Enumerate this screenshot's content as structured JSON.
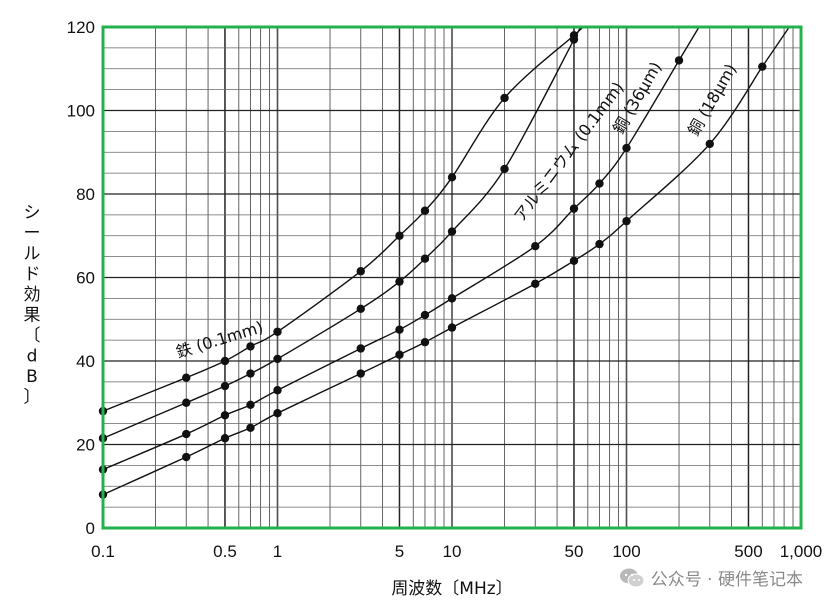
{
  "chart_data": {
    "type": "line",
    "x_scale": "log",
    "xlim": [
      0.1,
      1000
    ],
    "ylim": [
      0,
      120
    ],
    "xlabel": "周波数〔MHz〕",
    "ylabel": "シールド効果〔dB〕",
    "x_ticks": [
      {
        "value": 0.1,
        "label": "0.1"
      },
      {
        "value": 0.5,
        "label": "0.5"
      },
      {
        "value": 1,
        "label": "1"
      },
      {
        "value": 5,
        "label": "5"
      },
      {
        "value": 10,
        "label": "10"
      },
      {
        "value": 50,
        "label": "50"
      },
      {
        "value": 100,
        "label": "100"
      },
      {
        "value": 500,
        "label": "500"
      },
      {
        "value": 1000,
        "label": "1,000"
      }
    ],
    "y_ticks": [
      0,
      20,
      40,
      60,
      80,
      100,
      120
    ],
    "grid": true,
    "frame_color": "#22b14c",
    "series": [
      {
        "name": "鉄 (0.1mm)",
        "points": [
          [
            0.1,
            28
          ],
          [
            0.3,
            36
          ],
          [
            0.5,
            40
          ],
          [
            0.7,
            43.5
          ],
          [
            1,
            47
          ],
          [
            3,
            61.5
          ],
          [
            5,
            70
          ],
          [
            7,
            76
          ],
          [
            10,
            84
          ],
          [
            20,
            103
          ],
          [
            50,
            118
          ]
        ]
      },
      {
        "name": "アルミニウム (0.1mm)",
        "points": [
          [
            0.1,
            21.5
          ],
          [
            0.3,
            30
          ],
          [
            0.5,
            34
          ],
          [
            0.7,
            37
          ],
          [
            1,
            40.5
          ],
          [
            3,
            52.5
          ],
          [
            5,
            59
          ],
          [
            7,
            64.5
          ],
          [
            10,
            71
          ],
          [
            20,
            86
          ],
          [
            50,
            117
          ]
        ]
      },
      {
        "name": "銅 (36μm)",
        "points": [
          [
            0.1,
            14
          ],
          [
            0.3,
            22.5
          ],
          [
            0.5,
            27
          ],
          [
            0.7,
            29.5
          ],
          [
            1,
            33
          ],
          [
            3,
            43
          ],
          [
            5,
            47.5
          ],
          [
            7,
            51
          ],
          [
            10,
            55
          ],
          [
            30,
            67.5
          ],
          [
            50,
            76.5
          ],
          [
            70,
            82.5
          ],
          [
            100,
            91
          ],
          [
            200,
            112
          ]
        ]
      },
      {
        "name": "銅 (18μm)",
        "points": [
          [
            0.1,
            8
          ],
          [
            0.3,
            17
          ],
          [
            0.5,
            21.5
          ],
          [
            0.7,
            24
          ],
          [
            1,
            27.5
          ],
          [
            3,
            37
          ],
          [
            5,
            41.5
          ],
          [
            7,
            44.5
          ],
          [
            10,
            48
          ],
          [
            30,
            58.5
          ],
          [
            50,
            64
          ],
          [
            70,
            68
          ],
          [
            100,
            73.5
          ],
          [
            300,
            92
          ],
          [
            600,
            110.5
          ]
        ]
      }
    ]
  },
  "watermark": {
    "text": "公众号 · 硬件笔记本"
  }
}
